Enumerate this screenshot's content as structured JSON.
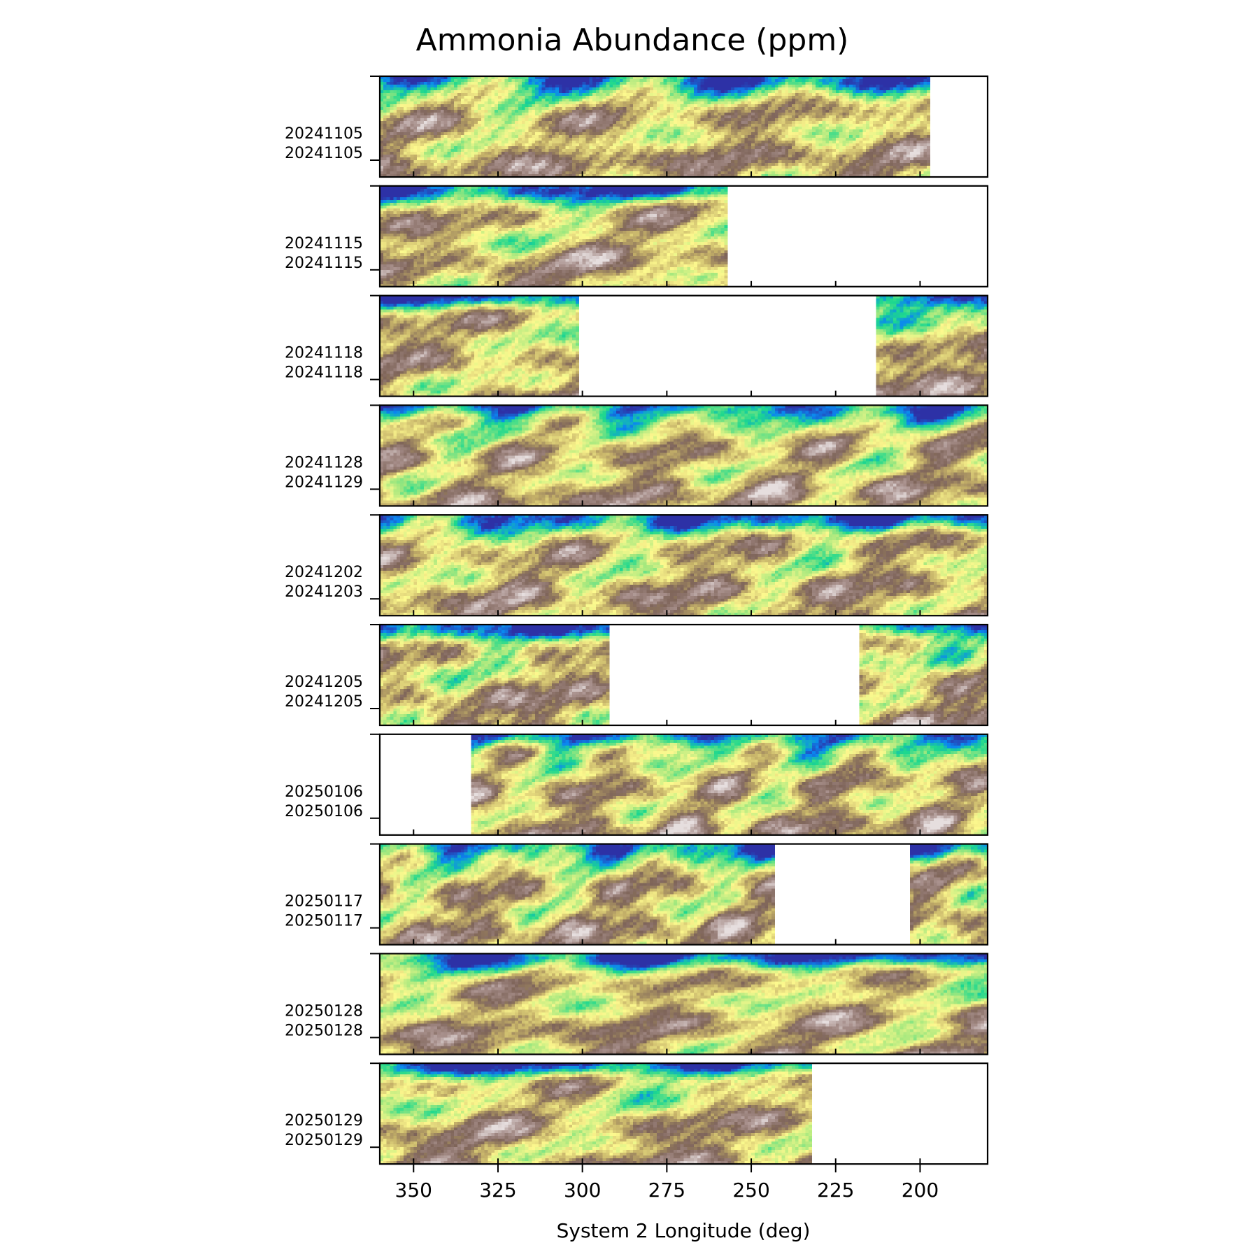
{
  "chart_data": {
    "type": "heatmap",
    "title": "Ammonia Abundance (ppm)",
    "xlabel": "System 2 Longitude (deg)",
    "ylabel": "",
    "xlim": [
      360,
      180
    ],
    "x_ticks": [
      "350",
      "325",
      "300",
      "275",
      "250",
      "225",
      "200"
    ],
    "colormap": "terrain",
    "colormap_stops": [
      "#2d31a6",
      "#0a87f0",
      "#1dd88e",
      "#a6e87e",
      "#fdf98e",
      "#c4b068",
      "#7e6459",
      "#a8908c",
      "#e6dede"
    ],
    "panels": [
      {
        "labels": [
          "20241105",
          "20241105"
        ],
        "coverage": [
          [
            360,
            197
          ]
        ]
      },
      {
        "labels": [
          "20241115",
          "20241115"
        ],
        "coverage": [
          [
            360,
            257
          ]
        ]
      },
      {
        "labels": [
          "20241118",
          "20241118"
        ],
        "coverage": [
          [
            360,
            301
          ],
          [
            213,
            180
          ]
        ]
      },
      {
        "labels": [
          "20241128",
          "20241129"
        ],
        "coverage": [
          [
            360,
            180
          ]
        ]
      },
      {
        "labels": [
          "20241202",
          "20241203"
        ],
        "coverage": [
          [
            360,
            180
          ]
        ]
      },
      {
        "labels": [
          "20241205",
          "20241205"
        ],
        "coverage": [
          [
            360,
            292
          ],
          [
            218,
            180
          ]
        ]
      },
      {
        "labels": [
          "20250106",
          "20250106"
        ],
        "coverage": [
          [
            333,
            180
          ]
        ]
      },
      {
        "labels": [
          "20250117",
          "20250117"
        ],
        "coverage": [
          [
            360,
            243
          ],
          [
            203,
            180
          ]
        ]
      },
      {
        "labels": [
          "20250128",
          "20250128"
        ],
        "coverage": [
          [
            360,
            180
          ]
        ]
      },
      {
        "labels": [
          "20250129",
          "20250129"
        ],
        "coverage": [
          [
            360,
            232
          ]
        ]
      }
    ]
  }
}
